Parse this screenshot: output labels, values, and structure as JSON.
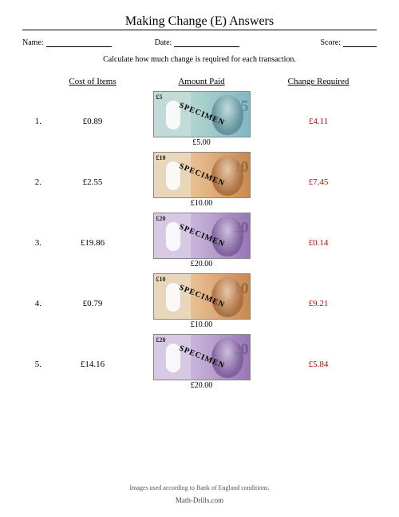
{
  "title": "Making Change (E) Answers",
  "meta": {
    "name_label": "Name:",
    "date_label": "Date:",
    "score_label": "Score:"
  },
  "instruction": "Calculate how much change is required for each transaction.",
  "headers": {
    "cost": "Cost of Items",
    "paid": "Amount Paid",
    "change": "Change Required"
  },
  "change_color": "#cc0000",
  "banknote_specimen": "SPECIMEN",
  "banknote_styles": {
    "5": {
      "bg": "linear-gradient(90deg,#d6e9e7 0%,#a9d0cc 48%,#7fb8c4 100%)",
      "portrait": "#5d8a96",
      "left": "#c1dcd8"
    },
    "10": {
      "bg": "linear-gradient(90deg,#f1dfc4 0%,#e5b98a 48%,#c98850 100%)",
      "portrait": "#a76a3a",
      "left": "#ead6b8"
    },
    "20": {
      "bg": "linear-gradient(90deg,#e2d7ea 0%,#c3aed6 48%,#9677b5 100%)",
      "portrait": "#7a5a98",
      "left": "#d7c9e3"
    }
  },
  "rows": [
    {
      "n": "1.",
      "cost": "£0.89",
      "denom": "5",
      "paid": "£5.00",
      "change": "£4.11"
    },
    {
      "n": "2.",
      "cost": "£2.55",
      "denom": "10",
      "paid": "£10.00",
      "change": "£7.45"
    },
    {
      "n": "3.",
      "cost": "£19.86",
      "denom": "20",
      "paid": "£20.00",
      "change": "£0.14"
    },
    {
      "n": "4.",
      "cost": "£0.79",
      "denom": "10",
      "paid": "£10.00",
      "change": "£9.21"
    },
    {
      "n": "5.",
      "cost": "£14.16",
      "denom": "20",
      "paid": "£20.00",
      "change": "£5.84"
    }
  ],
  "footer": {
    "note": "Images used according to Bank of England conditions.",
    "site": "Math-Drills.com"
  }
}
